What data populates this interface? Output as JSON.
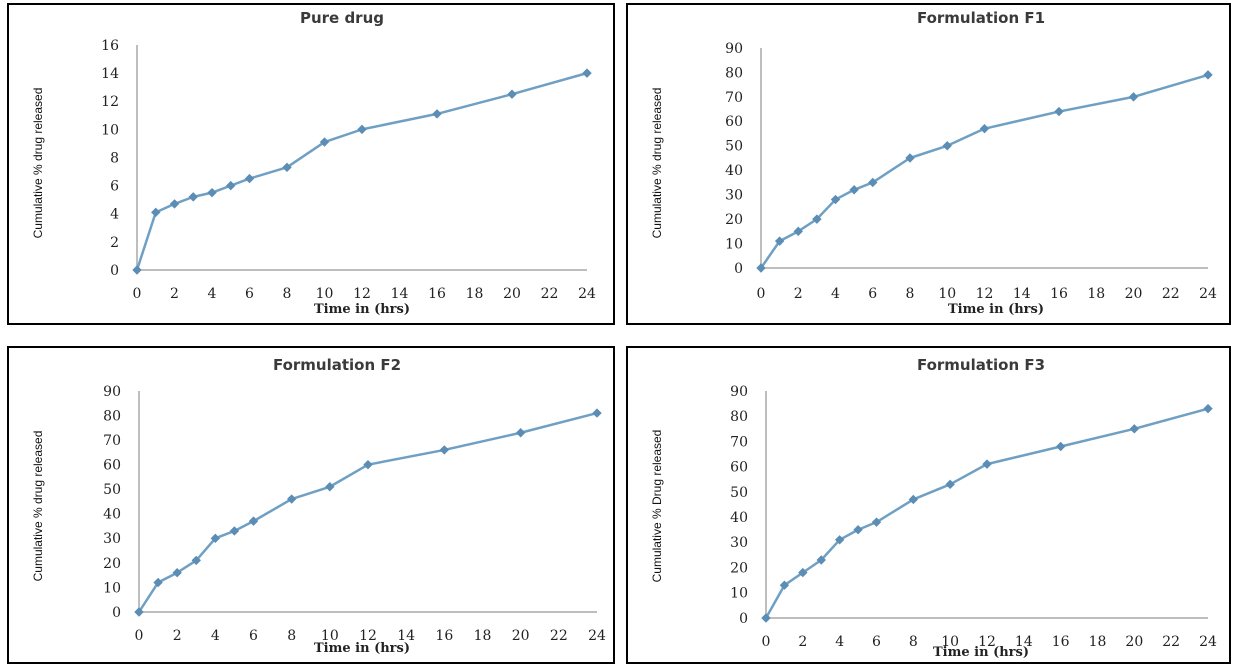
{
  "style": {
    "line_color": "#6fa0c4",
    "marker_color": "#5b8db5",
    "axis_color": "#a8a8a8",
    "border_color": "#000000"
  },
  "chart_data": [
    {
      "type": "line",
      "title": "Pure drug",
      "xlabel": "Time in (hrs)",
      "ylabel": "Cumulative % drug released",
      "xlim": [
        0,
        24
      ],
      "ylim": [
        0,
        16
      ],
      "xticks": [
        "0",
        "2",
        "4",
        "6",
        "8",
        "10",
        "12",
        "14",
        "16",
        "18",
        "20",
        "22",
        "24"
      ],
      "yticks": [
        "0",
        "2",
        "4",
        "6",
        "8",
        "10",
        "12",
        "14",
        "16"
      ],
      "grid": false,
      "x": [
        0,
        1,
        2,
        3,
        4,
        5,
        6,
        8,
        10,
        12,
        16,
        20,
        24
      ],
      "y": [
        0,
        4.1,
        4.7,
        5.2,
        5.5,
        6.0,
        6.5,
        7.3,
        9.1,
        10.0,
        11.1,
        12.5,
        14.0
      ]
    },
    {
      "type": "line",
      "title": "Formulation  F1",
      "xlabel": "Time in (hrs)",
      "ylabel": "Cumulative % drug released",
      "xlim": [
        0,
        24
      ],
      "ylim": [
        0,
        90
      ],
      "xticks": [
        "0",
        "2",
        "4",
        "6",
        "8",
        "10",
        "12",
        "14",
        "16",
        "18",
        "20",
        "22",
        "24"
      ],
      "yticks": [
        "0",
        "10",
        "20",
        "30",
        "40",
        "50",
        "60",
        "70",
        "80",
        "90"
      ],
      "grid": false,
      "x": [
        0,
        1,
        2,
        3,
        4,
        5,
        6,
        8,
        10,
        12,
        16,
        20,
        24
      ],
      "y": [
        0,
        11,
        15,
        20,
        28,
        32,
        35,
        45,
        50,
        57,
        64,
        70,
        79
      ]
    },
    {
      "type": "line",
      "title": "Formulation F2",
      "xlabel": "Time in (hrs)",
      "ylabel": "Cumulative % drug released",
      "xlim": [
        0,
        24
      ],
      "ylim": [
        0,
        90
      ],
      "xticks": [
        "0",
        "2",
        "4",
        "6",
        "8",
        "10",
        "12",
        "14",
        "16",
        "18",
        "20",
        "22",
        "24"
      ],
      "yticks": [
        "0",
        "10",
        "20",
        "30",
        "40",
        "50",
        "60",
        "70",
        "80",
        "90"
      ],
      "grid": false,
      "x": [
        0,
        1,
        2,
        3,
        4,
        5,
        6,
        8,
        10,
        12,
        16,
        20,
        24
      ],
      "y": [
        0,
        12,
        16,
        21,
        30,
        33,
        37,
        46,
        51,
        60,
        66,
        73,
        81
      ]
    },
    {
      "type": "line",
      "title": "Formulation F3",
      "xlabel": "Time in (hrs)",
      "ylabel": "Cumulative % Drug released",
      "xlim": [
        0,
        24
      ],
      "ylim": [
        0,
        90
      ],
      "xticks": [
        "0",
        "2",
        "4",
        "6",
        "8",
        "10",
        "12",
        "14",
        "16",
        "18",
        "20",
        "22",
        "24"
      ],
      "yticks": [
        "0",
        "10",
        "20",
        "30",
        "40",
        "50",
        "60",
        "70",
        "80",
        "90"
      ],
      "grid": false,
      "x": [
        0,
        1,
        2,
        3,
        4,
        5,
        6,
        8,
        10,
        12,
        16,
        20,
        24
      ],
      "y": [
        0,
        13,
        18,
        23,
        31,
        35,
        38,
        47,
        53,
        61,
        68,
        75,
        83
      ]
    }
  ]
}
